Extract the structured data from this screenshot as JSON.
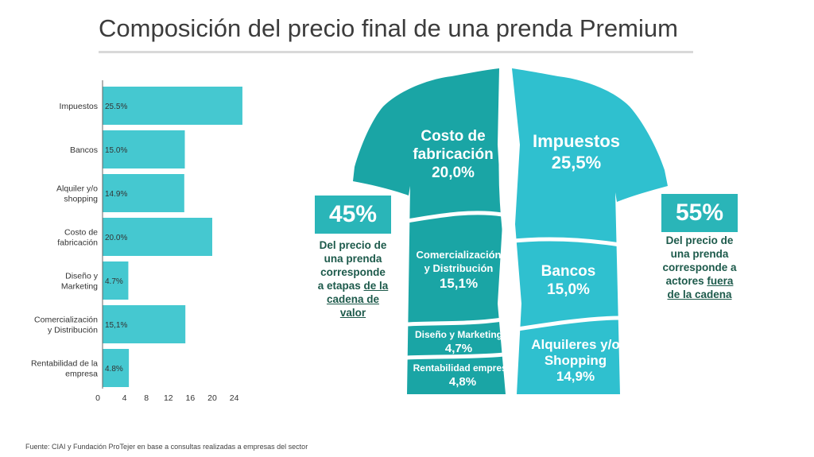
{
  "title": "Composición del precio final de una prenda Premium",
  "source": "Fuente: CIAI y Fundación ProTejer en base a consultas realizadas a empresas del sector",
  "colors": {
    "bar": "#45c8d0",
    "box": "#2ab5b8",
    "shirt_dark": "#1aa5a5",
    "shirt_light": "#2fc0cf",
    "text_dark": "#1d5a4b"
  },
  "chart_data": {
    "type": "bar",
    "orientation": "horizontal",
    "categories": [
      [
        "Impuestos"
      ],
      [
        "Bancos"
      ],
      [
        "Alquiler y/o",
        "shopping"
      ],
      [
        "Costo de",
        "fabricación"
      ],
      [
        "Diseño y",
        "Marketing"
      ],
      [
        "Comercialización",
        "y Distribución"
      ],
      [
        "Rentabilidad de la",
        "empresa"
      ]
    ],
    "values": [
      25.5,
      15.0,
      14.9,
      20.0,
      4.7,
      15.1,
      4.8
    ],
    "data_labels": [
      "25.5%",
      "15.0%",
      "14.9%",
      "20.0%",
      "4.7%",
      "15,1%",
      "4.8%"
    ],
    "xticks": [
      0,
      4,
      8,
      12,
      16,
      20,
      24
    ],
    "xlim": [
      0,
      28
    ]
  },
  "left_box": {
    "value": "45%",
    "text_lines": [
      "Del precio de",
      "una prenda",
      "corresponde",
      "a etapas"
    ],
    "link_lines": [
      "de la",
      "cadena de",
      "valor"
    ]
  },
  "right_box": {
    "value": "55%",
    "text_lines": [
      "Del precio de",
      "una prenda",
      "corresponde a",
      "actores"
    ],
    "link_lines": [
      "fuera",
      "de la cadena"
    ]
  },
  "shirt": {
    "costo": [
      "Costo de",
      "fabricación",
      "20,0%"
    ],
    "impuestos": [
      "Impuestos",
      "25,5%"
    ],
    "comercializacion": [
      "Comercialización",
      "y Distribución",
      "15,1%"
    ],
    "bancos": [
      "Bancos",
      "15,0%"
    ],
    "diseno": [
      "Diseño y Marketing",
      "4,7%"
    ],
    "rentabilidad": [
      "Rentabilidad empresa",
      "4,8%"
    ],
    "alquileres": [
      "Alquileres y/o",
      "Shopping",
      "14,9%"
    ]
  }
}
